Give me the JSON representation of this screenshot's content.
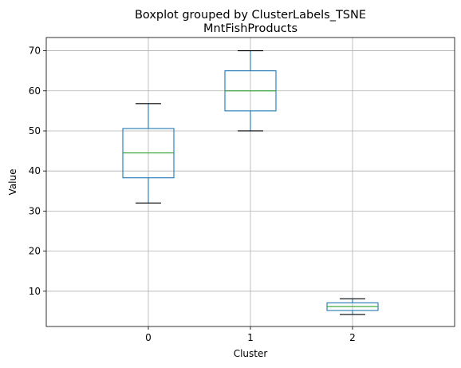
{
  "chart_data": {
    "type": "boxplot",
    "suptitle": "Boxplot grouped by ClusterLabels_TSNE",
    "title": "MntFishProducts",
    "xlabel": "Cluster",
    "ylabel": "Value",
    "categories": [
      "0",
      "1",
      "2"
    ],
    "ylim": [
      1.2,
      73.3
    ],
    "yticks": [
      10,
      20,
      30,
      40,
      50,
      60,
      70
    ],
    "grid": true,
    "boxes": [
      {
        "label": "0",
        "whisker_low": 32,
        "q1": 38.3,
        "median": 44.5,
        "q3": 50.6,
        "whisker_high": 56.8
      },
      {
        "label": "1",
        "whisker_low": 50,
        "q1": 55,
        "median": 60,
        "q3": 65,
        "whisker_high": 70
      },
      {
        "label": "2",
        "whisker_low": 4.2,
        "q1": 5.2,
        "median": 6.2,
        "q3": 7.1,
        "whisker_high": 8.1
      }
    ],
    "colors": {
      "box": "#1f77b4",
      "median": "#2ca02c",
      "cap": "#000000",
      "grid": "#b0b0b0"
    }
  }
}
